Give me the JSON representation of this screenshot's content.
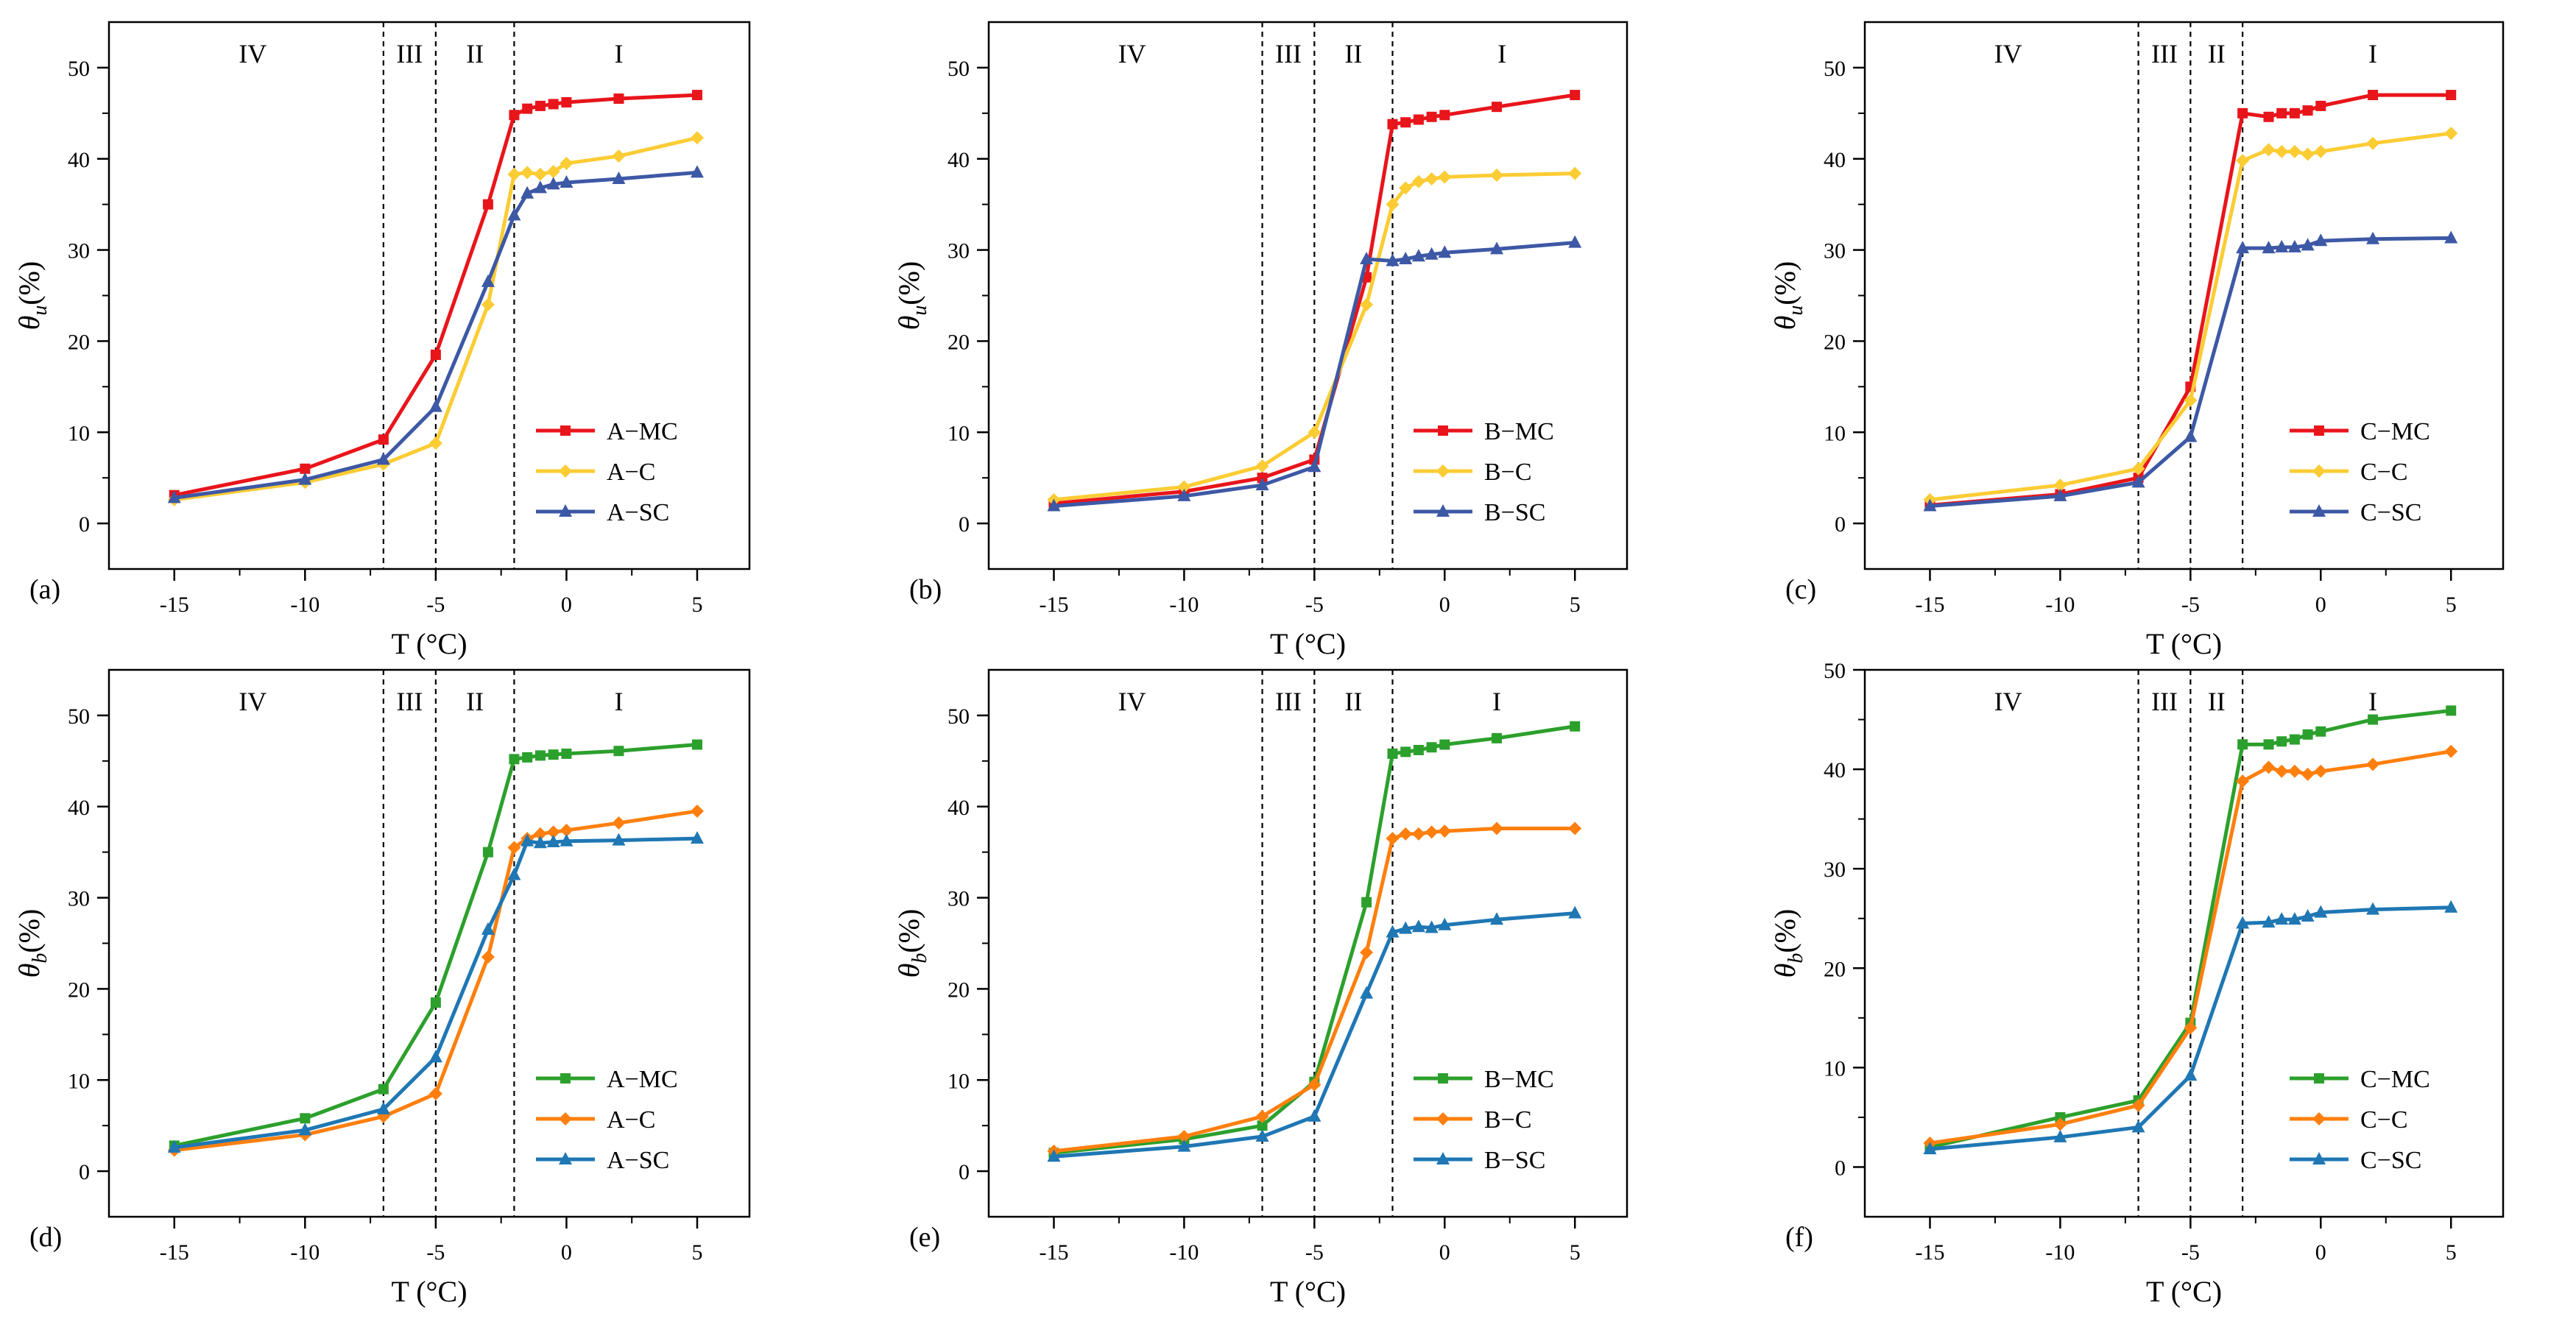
{
  "chart_data": [
    {
      "type": "line",
      "panel_label": "(a)",
      "xlabel": "T (°C)",
      "ylabel_symbol": "θ",
      "ylabel_sub": "u",
      "ylabel_unit": "(%)",
      "xlim": [
        -17.5,
        7
      ],
      "ylim": [
        -5,
        55
      ],
      "xticks": [
        -15,
        -10,
        -5,
        0,
        5
      ],
      "yticks": [
        0,
        10,
        20,
        30,
        40,
        50
      ],
      "boundaries": [
        -7,
        -5,
        -2
      ],
      "regions": [
        {
          "label": "IV",
          "x": -12
        },
        {
          "label": "III",
          "x": -6
        },
        {
          "label": "II",
          "x": -3.5
        },
        {
          "label": "I",
          "x": 2
        }
      ],
      "legend": "bottom-right",
      "series": [
        {
          "name": "A−MC",
          "color": "#e8151b",
          "marker": "square",
          "x": [
            -15,
            -10,
            -7,
            -5,
            -3,
            -2,
            -1.5,
            -1,
            -0.5,
            0,
            2,
            5
          ],
          "values": [
            3.1,
            6.0,
            9.2,
            18.5,
            35.0,
            44.8,
            45.5,
            45.8,
            46.0,
            46.2,
            46.6,
            47.0
          ]
        },
        {
          "name": "A−C",
          "color": "#fbcc34",
          "marker": "diamond",
          "x": [
            -15,
            -10,
            -7,
            -5,
            -3,
            -2,
            -1.5,
            -1,
            -0.5,
            0,
            2,
            5
          ],
          "values": [
            2.6,
            4.5,
            6.5,
            8.8,
            24.0,
            38.3,
            38.5,
            38.3,
            38.6,
            39.5,
            40.3,
            42.3
          ]
        },
        {
          "name": "A−SC",
          "color": "#3d58a5",
          "marker": "triangle",
          "x": [
            -15,
            -10,
            -7,
            -5,
            -3,
            -2,
            -1.5,
            -1,
            -0.5,
            0,
            2,
            5
          ],
          "values": [
            2.8,
            4.8,
            7.0,
            12.8,
            26.5,
            33.8,
            36.2,
            36.8,
            37.2,
            37.4,
            37.8,
            38.5
          ]
        }
      ]
    },
    {
      "type": "line",
      "panel_label": "(b)",
      "xlabel": "T (°C)",
      "ylabel_symbol": "θ",
      "ylabel_sub": "u",
      "ylabel_unit": "(%)",
      "xlim": [
        -17.5,
        7
      ],
      "ylim": [
        -5,
        55
      ],
      "xticks": [
        -15,
        -10,
        -5,
        0,
        5
      ],
      "yticks": [
        0,
        10,
        20,
        30,
        40,
        50
      ],
      "boundaries": [
        -7,
        -5,
        -2
      ],
      "regions": [
        {
          "label": "IV",
          "x": -12
        },
        {
          "label": "III",
          "x": -6
        },
        {
          "label": "II",
          "x": -3.5
        },
        {
          "label": "I",
          "x": 2.2
        }
      ],
      "legend": "bottom-right",
      "series": [
        {
          "name": "B−MC",
          "color": "#e8151b",
          "marker": "square",
          "x": [
            -15,
            -10,
            -7,
            -5,
            -3,
            -2,
            -1.5,
            -1,
            -0.5,
            0,
            2,
            5
          ],
          "values": [
            2.2,
            3.5,
            5.0,
            7.0,
            27.0,
            43.8,
            44.0,
            44.3,
            44.6,
            44.8,
            45.7,
            47.0
          ]
        },
        {
          "name": "B−C",
          "color": "#fbcc34",
          "marker": "diamond",
          "x": [
            -15,
            -10,
            -7,
            -5,
            -3,
            -2,
            -1.5,
            -1,
            -0.5,
            0,
            2,
            5
          ],
          "values": [
            2.6,
            4.0,
            6.3,
            10.0,
            24.0,
            35.0,
            36.8,
            37.5,
            37.8,
            38.0,
            38.2,
            38.4
          ]
        },
        {
          "name": "B−SC",
          "color": "#3d58a5",
          "marker": "triangle",
          "x": [
            -15,
            -10,
            -7,
            -5,
            -3,
            -2,
            -1.5,
            -1,
            -0.5,
            0,
            2,
            5
          ],
          "values": [
            1.9,
            3.0,
            4.2,
            6.2,
            29.0,
            28.8,
            29.0,
            29.3,
            29.5,
            29.7,
            30.1,
            30.8
          ]
        }
      ]
    },
    {
      "type": "line",
      "panel_label": "(c)",
      "xlabel": "T (°C)",
      "ylabel_symbol": "θ",
      "ylabel_sub": "u",
      "ylabel_unit": "(%)",
      "xlim": [
        -17.5,
        7
      ],
      "ylim": [
        -5,
        55
      ],
      "xticks": [
        -15,
        -10,
        -5,
        0,
        5
      ],
      "yticks": [
        0,
        10,
        20,
        30,
        40,
        50
      ],
      "boundaries": [
        -7,
        -5,
        -3
      ],
      "regions": [
        {
          "label": "IV",
          "x": -12
        },
        {
          "label": "III",
          "x": -6
        },
        {
          "label": "II",
          "x": -4
        },
        {
          "label": "I",
          "x": 2
        }
      ],
      "legend": "bottom-right",
      "series": [
        {
          "name": "C−MC",
          "color": "#e8151b",
          "marker": "square",
          "x": [
            -15,
            -10,
            -7,
            -5,
            -3,
            -2,
            -1.5,
            -1,
            -0.5,
            0,
            2,
            5
          ],
          "values": [
            2.0,
            3.2,
            5.0,
            15.0,
            45.0,
            44.6,
            45.0,
            45.0,
            45.3,
            45.8,
            47.0,
            47.0
          ]
        },
        {
          "name": "C−C",
          "color": "#fbcc34",
          "marker": "diamond",
          "x": [
            -15,
            -10,
            -7,
            -5,
            -3,
            -2,
            -1.5,
            -1,
            -0.5,
            0,
            2,
            5
          ],
          "values": [
            2.6,
            4.2,
            6.0,
            13.5,
            39.8,
            41.0,
            40.8,
            40.8,
            40.5,
            40.8,
            41.7,
            42.8
          ]
        },
        {
          "name": "C−SC",
          "color": "#3d58a5",
          "marker": "triangle",
          "x": [
            -15,
            -10,
            -7,
            -5,
            -3,
            -2,
            -1.5,
            -1,
            -0.5,
            0,
            2,
            5
          ],
          "values": [
            1.9,
            3.0,
            4.5,
            9.5,
            30.2,
            30.2,
            30.3,
            30.3,
            30.5,
            31.0,
            31.2,
            31.3
          ]
        }
      ]
    },
    {
      "type": "line",
      "panel_label": "(d)",
      "xlabel": "T (°C)",
      "ylabel_symbol": "θ",
      "ylabel_sub": "b",
      "ylabel_unit": "(%)",
      "xlim": [
        -17.5,
        7
      ],
      "ylim": [
        -5,
        55
      ],
      "xticks": [
        -15,
        -10,
        -5,
        0,
        5
      ],
      "yticks": [
        0,
        10,
        20,
        30,
        40,
        50
      ],
      "boundaries": [
        -7,
        -5,
        -2
      ],
      "regions": [
        {
          "label": "IV",
          "x": -12
        },
        {
          "label": "III",
          "x": -6
        },
        {
          "label": "II",
          "x": -3.5
        },
        {
          "label": "I",
          "x": 2
        }
      ],
      "legend": "bottom-right",
      "series": [
        {
          "name": "A−MC",
          "color": "#2ca02c",
          "marker": "square",
          "x": [
            -15,
            -10,
            -7,
            -5,
            -3,
            -2,
            -1.5,
            -1,
            -0.5,
            0,
            2,
            5
          ],
          "values": [
            2.8,
            5.8,
            9.0,
            18.5,
            35.0,
            45.2,
            45.4,
            45.6,
            45.7,
            45.8,
            46.1,
            46.8
          ]
        },
        {
          "name": "A−C",
          "color": "#ff7f0e",
          "marker": "diamond",
          "x": [
            -15,
            -10,
            -7,
            -5,
            -3,
            -2,
            -1.5,
            -1,
            -0.5,
            0,
            2,
            5
          ],
          "values": [
            2.3,
            4.0,
            6.0,
            8.5,
            23.5,
            35.5,
            36.5,
            37.0,
            37.2,
            37.4,
            38.2,
            39.5
          ]
        },
        {
          "name": "A−SC",
          "color": "#1f77b4",
          "marker": "triangle",
          "x": [
            -15,
            -10,
            -7,
            -5,
            -3,
            -2,
            -1.5,
            -1,
            -0.5,
            0,
            2,
            5
          ],
          "values": [
            2.6,
            4.5,
            6.8,
            12.5,
            26.5,
            32.5,
            36.2,
            36.0,
            36.1,
            36.2,
            36.3,
            36.5
          ]
        }
      ]
    },
    {
      "type": "line",
      "panel_label": "(e)",
      "xlabel": "T (°C)",
      "ylabel_symbol": "θ",
      "ylabel_sub": "b",
      "ylabel_unit": "(%)",
      "xlim": [
        -17.5,
        7
      ],
      "ylim": [
        -5,
        55
      ],
      "xticks": [
        -15,
        -10,
        -5,
        0,
        5
      ],
      "yticks": [
        0,
        10,
        20,
        30,
        40,
        50
      ],
      "boundaries": [
        -7,
        -5,
        -2
      ],
      "regions": [
        {
          "label": "IV",
          "x": -12
        },
        {
          "label": "III",
          "x": -6
        },
        {
          "label": "II",
          "x": -3.5
        },
        {
          "label": "I",
          "x": 2
        }
      ],
      "legend": "bottom-right",
      "series": [
        {
          "name": "B−MC",
          "color": "#2ca02c",
          "marker": "square",
          "x": [
            -15,
            -10,
            -7,
            -5,
            -3,
            -2,
            -1.5,
            -1,
            -0.5,
            0,
            2,
            5
          ],
          "values": [
            2.0,
            3.5,
            5.0,
            9.8,
            29.5,
            45.8,
            46.0,
            46.2,
            46.5,
            46.8,
            47.5,
            48.8
          ]
        },
        {
          "name": "B−C",
          "color": "#ff7f0e",
          "marker": "diamond",
          "x": [
            -15,
            -10,
            -7,
            -5,
            -3,
            -2,
            -1.5,
            -1,
            -0.5,
            0,
            2,
            5
          ],
          "values": [
            2.2,
            3.8,
            6.0,
            9.5,
            24.0,
            36.5,
            37.0,
            37.0,
            37.2,
            37.3,
            37.6,
            37.6
          ]
        },
        {
          "name": "B−SC",
          "color": "#1f77b4",
          "marker": "triangle",
          "x": [
            -15,
            -10,
            -7,
            -5,
            -3,
            -2,
            -1.5,
            -1,
            -0.5,
            0,
            2,
            5
          ],
          "values": [
            1.6,
            2.7,
            3.8,
            6.0,
            19.5,
            26.2,
            26.6,
            26.8,
            26.7,
            27.0,
            27.6,
            28.3
          ]
        }
      ]
    },
    {
      "type": "line",
      "panel_label": "(f)",
      "xlabel": "T (°C)",
      "ylabel_symbol": "θ",
      "ylabel_sub": "b",
      "ylabel_unit": "(%)",
      "xlim": [
        -17.5,
        7
      ],
      "ylim": [
        -5,
        50
      ],
      "xticks": [
        -15,
        -10,
        -5,
        0,
        5
      ],
      "yticks": [
        0,
        10,
        20,
        30,
        40,
        50
      ],
      "boundaries": [
        -7,
        -5,
        -3
      ],
      "regions": [
        {
          "label": "IV",
          "x": -12
        },
        {
          "label": "III",
          "x": -6
        },
        {
          "label": "II",
          "x": -4
        },
        {
          "label": "I",
          "x": 2
        }
      ],
      "legend": "bottom-right",
      "series": [
        {
          "name": "C−MC",
          "color": "#2ca02c",
          "marker": "square",
          "x": [
            -15,
            -10,
            -7,
            -5,
            -3,
            -2,
            -1.5,
            -1,
            -0.5,
            0,
            2,
            5
          ],
          "values": [
            2.0,
            5.0,
            6.7,
            14.5,
            42.5,
            42.5,
            42.8,
            43.0,
            43.5,
            43.8,
            45.0,
            45.9
          ]
        },
        {
          "name": "C−C",
          "color": "#ff7f0e",
          "marker": "diamond",
          "x": [
            -15,
            -10,
            -7,
            -5,
            -3,
            -2,
            -1.5,
            -1,
            -0.5,
            0,
            2,
            5
          ],
          "values": [
            2.4,
            4.3,
            6.2,
            14.0,
            38.8,
            40.2,
            39.8,
            39.8,
            39.5,
            39.8,
            40.5,
            41.8
          ]
        },
        {
          "name": "C−SC",
          "color": "#1f77b4",
          "marker": "triangle",
          "x": [
            -15,
            -10,
            -7,
            -5,
            -3,
            -2,
            -1.5,
            -1,
            -0.5,
            0,
            2,
            5
          ],
          "values": [
            1.8,
            3.0,
            4.0,
            9.2,
            24.5,
            24.6,
            24.9,
            24.9,
            25.2,
            25.6,
            25.9,
            26.1
          ]
        }
      ]
    }
  ]
}
